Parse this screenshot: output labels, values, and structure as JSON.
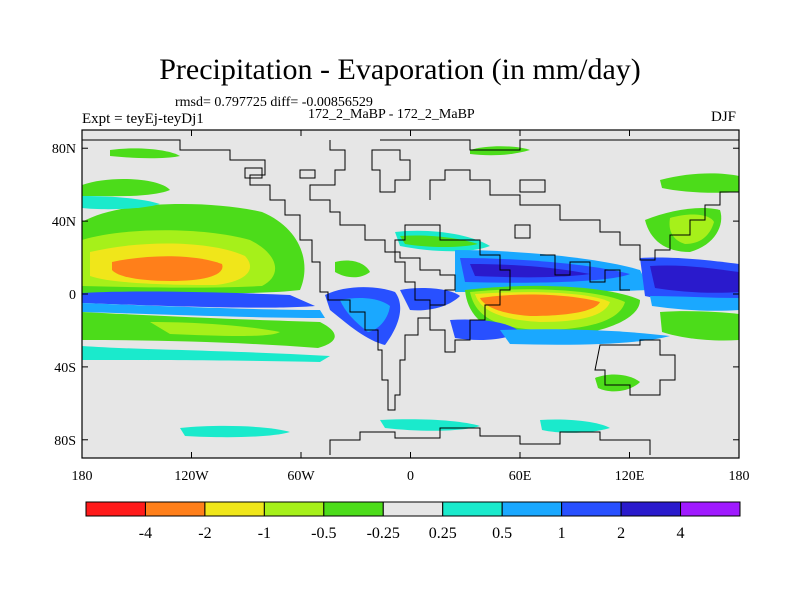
{
  "title": "Precipitation - Evaporation (in mm/day)",
  "stats": "rmsd= 0.797725 diff= -0.00856529",
  "experiment": "Expt = teyEj-teyDj1",
  "comparison": "172_2_MaBP - 172_2_MaBP",
  "season": "DJF",
  "map": {
    "x_ticks": [
      {
        "lon": -180,
        "label": "180"
      },
      {
        "lon": -120,
        "label": "120W"
      },
      {
        "lon": -60,
        "label": "60W"
      },
      {
        "lon": 0,
        "label": "0"
      },
      {
        "lon": 60,
        "label": "60E"
      },
      {
        "lon": 120,
        "label": "120E"
      },
      {
        "lon": 180,
        "label": "180"
      }
    ],
    "y_ticks": [
      {
        "lat": 80,
        "label": "80N"
      },
      {
        "lat": 40,
        "label": "40N"
      },
      {
        "lat": 0,
        "label": "0"
      },
      {
        "lat": -40,
        "label": "40S"
      },
      {
        "lat": -80,
        "label": "80S"
      }
    ],
    "lon_range": [
      -180,
      180
    ],
    "lat_range": [
      -90,
      90
    ]
  },
  "colorbar": {
    "colors": [
      "#ff1a1a",
      "#ff7f1a",
      "#f0e61a",
      "#a6f01a",
      "#4cdc1a",
      "#e6e6e6",
      "#1aeacc",
      "#1aa8ff",
      "#2850ff",
      "#2a1acc",
      "#a01aff"
    ],
    "labels": [
      "-4",
      "-2",
      "-1",
      "-0.5",
      "-0.25",
      "0.25",
      "0.5",
      "1",
      "2",
      "4"
    ]
  }
}
